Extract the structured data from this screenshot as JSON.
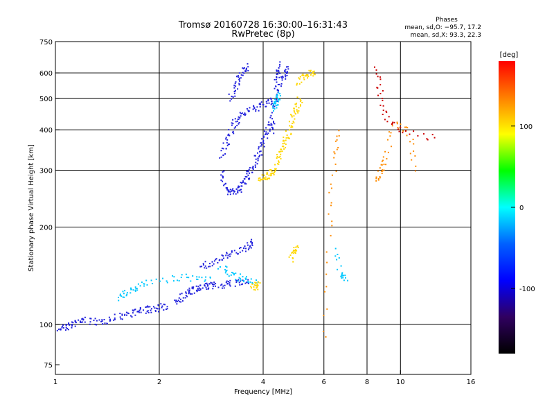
{
  "chart_data": {
    "type": "scatter",
    "title": "Tromsø 20160728 16:30:00–16:31:43",
    "subtitle": "RwPretec (8p)",
    "xlabel": "Frequency [MHz]",
    "ylabel": "Stationary phase Virtual Height [km]",
    "x_scale": "log2",
    "y_scale": "log",
    "xlim": [
      1,
      16
    ],
    "ylim": [
      70,
      750
    ],
    "x_ticks": [
      1,
      2,
      4,
      6,
      8,
      10,
      16
    ],
    "y_ticks": [
      75,
      100,
      200,
      300,
      400,
      500,
      600,
      750
    ],
    "x_gridlines": [
      2,
      4,
      6,
      8,
      10
    ],
    "y_gridlines": [
      100,
      200,
      300,
      400,
      500,
      600
    ],
    "grid": true,
    "stats": {
      "heading": "Phases",
      "line_o": "mean, sd,O: −95.7, 17.2",
      "line_x": "mean, sd,X:  93.3, 22.3"
    },
    "colorbar": {
      "label": "[deg]",
      "range": [
        -180,
        180
      ],
      "ticks": [
        100,
        0,
        -100
      ],
      "colors": [
        "#ff0000",
        "#ff8000",
        "#ffff00",
        "#00ff00",
        "#00ffff",
        "#0060ff",
        "#0000ff",
        "#300060",
        "#000000"
      ]
    },
    "series": [
      {
        "marker_color": "#2222dd",
        "traces": [
          [
            [
              1.0,
              97
            ],
            [
              1.05,
              98
            ],
            [
              1.1,
              100
            ],
            [
              1.15,
              102
            ],
            [
              1.2,
              104
            ],
            [
              1.3,
              102
            ],
            [
              1.4,
              103
            ],
            [
              1.5,
              106
            ],
            [
              1.6,
              108
            ],
            [
              1.7,
              110
            ],
            [
              1.8,
              111
            ],
            [
              1.9,
              112
            ],
            [
              2.0,
              113
            ],
            [
              2.1,
              114
            ]
          ],
          [
            [
              2.2,
              118
            ],
            [
              2.3,
              122
            ],
            [
              2.4,
              126
            ],
            [
              2.5,
              128
            ],
            [
              2.6,
              130
            ],
            [
              2.7,
              132
            ],
            [
              2.8,
              132
            ],
            [
              3.0,
              133
            ],
            [
              3.2,
              134
            ],
            [
              3.4,
              135
            ],
            [
              3.6,
              138
            ]
          ],
          [
            [
              2.6,
              150
            ],
            [
              2.8,
              155
            ],
            [
              3.0,
              160
            ],
            [
              3.2,
              165
            ],
            [
              3.4,
              170
            ],
            [
              3.6,
              175
            ],
            [
              3.7,
              180
            ]
          ],
          [
            [
              3.0,
              300
            ],
            [
              3.1,
              270
            ],
            [
              3.2,
              258
            ],
            [
              3.3,
              258
            ],
            [
              3.4,
              265
            ],
            [
              3.5,
              275
            ],
            [
              3.6,
              290
            ],
            [
              3.7,
              305
            ],
            [
              3.8,
              325
            ],
            [
              3.9,
              345
            ],
            [
              4.0,
              370
            ],
            [
              4.1,
              395
            ],
            [
              4.2,
              420
            ]
          ],
          [
            [
              3.0,
              330
            ],
            [
              3.1,
              360
            ],
            [
              3.2,
              390
            ],
            [
              3.3,
              420
            ],
            [
              3.4,
              440
            ],
            [
              3.6,
              460
            ],
            [
              3.8,
              470
            ],
            [
              4.0,
              480
            ],
            [
              4.2,
              500
            ]
          ],
          [
            [
              3.2,
              500
            ],
            [
              3.3,
              540
            ],
            [
              3.4,
              580
            ],
            [
              3.5,
              610
            ],
            [
              3.6,
              630
            ]
          ],
          [
            [
              4.2,
              400
            ],
            [
              4.25,
              450
            ],
            [
              4.3,
              500
            ],
            [
              4.35,
              550
            ],
            [
              4.4,
              600
            ],
            [
              4.45,
              640
            ]
          ],
          [
            [
              4.5,
              560
            ],
            [
              4.6,
              600
            ],
            [
              4.7,
              630
            ]
          ]
        ]
      },
      {
        "marker_color": "#00c8ff",
        "traces": [
          [
            [
              1.5,
              122
            ],
            [
              1.6,
              125
            ],
            [
              1.7,
              130
            ],
            [
              1.8,
              135
            ],
            [
              2.2,
              140
            ],
            [
              2.5,
              140
            ],
            [
              2.8,
              140
            ]
          ],
          [
            [
              3.0,
              150
            ],
            [
              3.2,
              145
            ],
            [
              3.4,
              140
            ],
            [
              3.6,
              138
            ],
            [
              3.8,
              135
            ]
          ],
          [
            [
              4.3,
              470
            ],
            [
              4.35,
              480
            ],
            [
              4.4,
              500
            ],
            [
              4.45,
              520
            ]
          ],
          [
            [
              6.5,
              170
            ],
            [
              6.7,
              140
            ],
            [
              6.9,
              140
            ]
          ]
        ]
      },
      {
        "marker_color": "#ffd700",
        "traces": [
          [
            [
              3.9,
              280
            ],
            [
              4.0,
              285
            ],
            [
              4.1,
              290
            ],
            [
              4.2,
              295
            ],
            [
              4.3,
              300
            ],
            [
              4.4,
              330
            ],
            [
              4.5,
              350
            ],
            [
              4.6,
              370
            ],
            [
              4.7,
              390
            ],
            [
              4.8,
              420
            ],
            [
              4.9,
              450
            ],
            [
              5.0,
              480
            ],
            [
              5.1,
              500
            ]
          ],
          [
            [
              4.8,
              160
            ],
            [
              4.9,
              170
            ],
            [
              5.0,
              175
            ]
          ],
          [
            [
              3.7,
              130
            ],
            [
              3.8,
              132
            ],
            [
              3.9,
              135
            ]
          ],
          [
            [
              5.0,
              560
            ],
            [
              5.2,
              590
            ],
            [
              5.4,
              600
            ],
            [
              5.6,
              610
            ]
          ]
        ]
      },
      {
        "marker_color": "#ff8c00",
        "traces": [
          [
            [
              6.0,
              90
            ],
            [
              6.2,
              200
            ],
            [
              6.4,
              320
            ],
            [
              6.6,
              400
            ]
          ],
          [
            [
              8.5,
              280
            ],
            [
              8.7,
              300
            ],
            [
              9.0,
              320
            ],
            [
              9.5,
              420
            ],
            [
              10.5,
              400
            ],
            [
              11,
              300
            ]
          ]
        ]
      },
      {
        "marker_color": "#cc0000",
        "traces": [
          [
            [
              8.5,
              620
            ],
            [
              8.7,
              520
            ],
            [
              9.0,
              440
            ],
            [
              10.0,
              400
            ],
            [
              12.5,
              380
            ]
          ]
        ]
      }
    ]
  }
}
